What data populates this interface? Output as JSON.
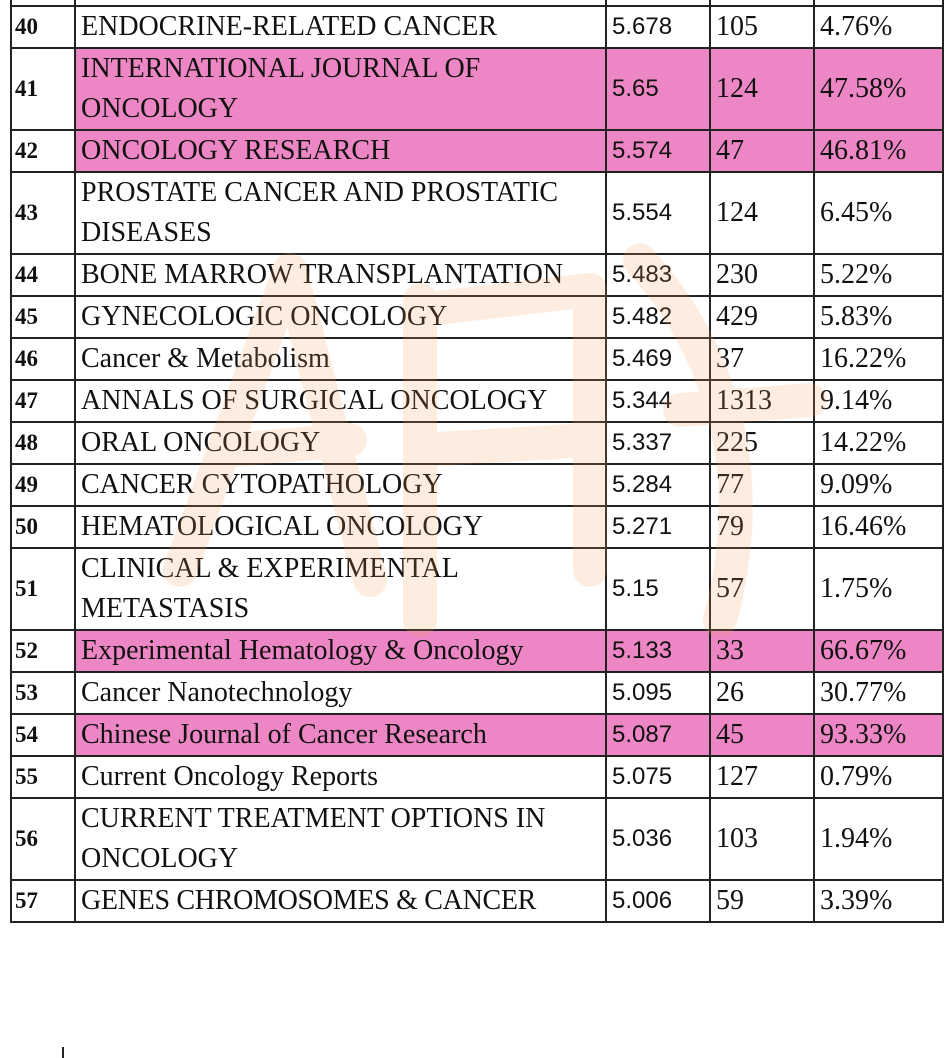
{
  "rows": [
    {
      "rank": "40",
      "name": "ENDOCRINE-RELATED CANCER",
      "impact_factor": "5.678",
      "count": "105",
      "percent": "4.76%",
      "highlight": false
    },
    {
      "rank": "41",
      "name": "INTERNATIONAL JOURNAL OF ONCOLOGY",
      "impact_factor": "5.65",
      "count": "124",
      "percent": "47.58%",
      "highlight": true
    },
    {
      "rank": "42",
      "name": "ONCOLOGY RESEARCH",
      "impact_factor": "5.574",
      "count": "47",
      "percent": "46.81%",
      "highlight": true
    },
    {
      "rank": "43",
      "name": "PROSTATE CANCER AND PROSTATIC DISEASES",
      "impact_factor": "5.554",
      "count": "124",
      "percent": "6.45%",
      "highlight": false
    },
    {
      "rank": "44",
      "name": "BONE MARROW TRANSPLANTATION",
      "impact_factor": "5.483",
      "count": "230",
      "percent": "5.22%",
      "highlight": false
    },
    {
      "rank": "45",
      "name": "GYNECOLOGIC ONCOLOGY",
      "impact_factor": "5.482",
      "count": "429",
      "percent": "5.83%",
      "highlight": false
    },
    {
      "rank": "46",
      "name": "Cancer & Metabolism",
      "impact_factor": "5.469",
      "count": "37",
      "percent": "16.22%",
      "highlight": false
    },
    {
      "rank": "47",
      "name": "ANNALS OF SURGICAL ONCOLOGY",
      "impact_factor": "5.344",
      "count": "1313",
      "percent": "9.14%",
      "highlight": false
    },
    {
      "rank": "48",
      "name": "ORAL ONCOLOGY",
      "impact_factor": "5.337",
      "count": "225",
      "percent": "14.22%",
      "highlight": false
    },
    {
      "rank": "49",
      "name": "CANCER CYTOPATHOLOGY",
      "impact_factor": "5.284",
      "count": "77",
      "percent": "9.09%",
      "highlight": false
    },
    {
      "rank": "50",
      "name": "HEMATOLOGICAL ONCOLOGY",
      "impact_factor": "5.271",
      "count": "79",
      "percent": "16.46%",
      "highlight": false
    },
    {
      "rank": "51",
      "name": "CLINICAL & EXPERIMENTAL METASTASIS",
      "impact_factor": "5.15",
      "count": "57",
      "percent": "1.75%",
      "highlight": false
    },
    {
      "rank": "52",
      "name": "Experimental Hematology & Oncology",
      "impact_factor": "5.133",
      "count": "33",
      "percent": "66.67%",
      "highlight": true
    },
    {
      "rank": "53",
      "name": "Cancer Nanotechnology",
      "impact_factor": "5.095",
      "count": "26",
      "percent": "30.77%",
      "highlight": false
    },
    {
      "rank": "54",
      "name": "Chinese Journal of Cancer Research",
      "impact_factor": "5.087",
      "count": "45",
      "percent": "93.33%",
      "highlight": true
    },
    {
      "rank": "55",
      "name": "Current Oncology Reports",
      "impact_factor": "5.075",
      "count": "127",
      "percent": "0.79%",
      "highlight": false
    },
    {
      "rank": "56",
      "name": "CURRENT TREATMENT OPTIONS IN ONCOLOGY",
      "impact_factor": "5.036",
      "count": "103",
      "percent": "1.94%",
      "highlight": false
    },
    {
      "rank": "57",
      "name": "GENES CHROMOSOMES & CANCER",
      "impact_factor": "5.006",
      "count": "59",
      "percent": "3.39%",
      "highlight": false
    }
  ],
  "colors": {
    "highlight": "#ed86c4",
    "border": "#222222",
    "watermark": "#f5a05a"
  }
}
